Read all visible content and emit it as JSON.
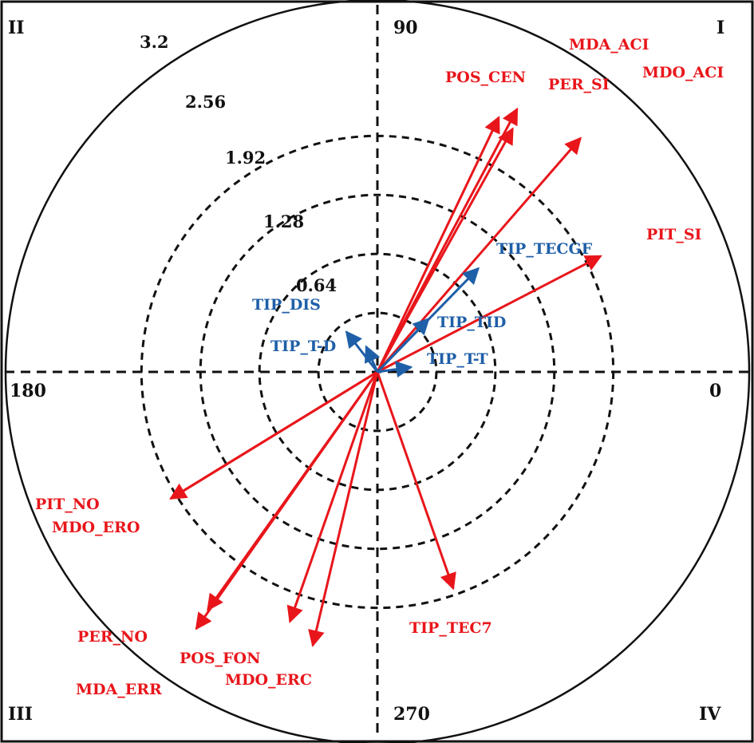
{
  "chart_data": {
    "type": "polar-vector",
    "quadrants": [
      "I",
      "II",
      "III",
      "IV"
    ],
    "angle_labels": [
      "0",
      "90",
      "180",
      "270"
    ],
    "radial_ticks": [
      {
        "value": 0.64,
        "label": "0.64"
      },
      {
        "value": 1.28,
        "label": "1.28"
      },
      {
        "value": 1.92,
        "label": "1.92"
      },
      {
        "value": 2.56,
        "label": "2.56"
      },
      {
        "value": 3.2,
        "label": "3.2"
      }
    ],
    "rmax": 3.2,
    "grid": "dashed circles",
    "colors": {
      "primary": "#e8161b",
      "secondary": "#1f5fa8",
      "grid": "#111111"
    },
    "vectors": [
      {
        "label": "MDA_ACI",
        "length": 3.23,
        "angle_deg": 62.0,
        "group": "primary"
      },
      {
        "label": "PER_SI",
        "length": 3.02,
        "angle_deg": 60.9,
        "group": "primary"
      },
      {
        "label": "POS_CEN",
        "length": 3.06,
        "angle_deg": 64.5,
        "group": "primary"
      },
      {
        "label": "MDO_ACI",
        "length": 3.36,
        "angle_deg": 49.0,
        "group": "primary"
      },
      {
        "label": "PIT_SI",
        "length": 2.73,
        "angle_deg": 27.4,
        "group": "primary"
      },
      {
        "label": "PIT_NO",
        "length": 2.63,
        "angle_deg": 211.5,
        "group": "primary"
      },
      {
        "label": "MDO_ERO",
        "length": 2.63,
        "angle_deg": 211.5,
        "group": "primary"
      },
      {
        "label": "PER_NO",
        "length": 3.17,
        "angle_deg": 234.5,
        "group": "primary"
      },
      {
        "label": "MDA_ERR",
        "length": 3.41,
        "angle_deg": 234.8,
        "group": "primary"
      },
      {
        "label": "POS_FON",
        "length": 2.87,
        "angle_deg": 250.7,
        "group": "primary"
      },
      {
        "label": "MDO_ERC",
        "length": 3.05,
        "angle_deg": 256.7,
        "group": "primary"
      },
      {
        "label": "TIP_TEC7",
        "length": 2.49,
        "angle_deg": 289.3,
        "group": "primary"
      },
      {
        "label": "TIP_TECGF",
        "length": 1.57,
        "angle_deg": 45.7,
        "group": "secondary"
      },
      {
        "label": "TIP_TID",
        "length": 0.8,
        "angle_deg": 46.0,
        "group": "secondary"
      },
      {
        "label": "TIP_DIS",
        "length": 0.55,
        "angle_deg": 127.8,
        "group": "secondary"
      },
      {
        "label": "TIP_T-D",
        "length": 0.3,
        "angle_deg": 114.0,
        "group": "secondary"
      },
      {
        "label": "TIP_T-T",
        "length": 0.37,
        "angle_deg": 8.0,
        "group": "secondary"
      }
    ]
  }
}
